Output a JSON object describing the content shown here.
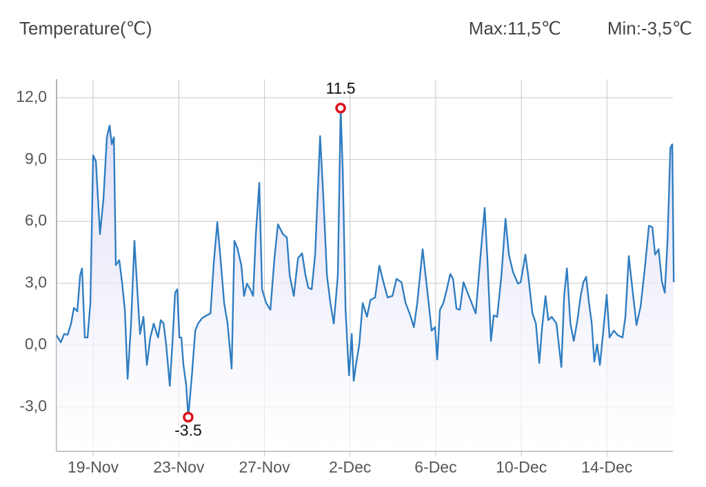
{
  "header": {
    "title": "Temperature(℃)",
    "max": "Max:11,5℃",
    "min": "Min:-3,5℃"
  },
  "chart_data": {
    "type": "line",
    "x": [
      -1.71,
      -1.51,
      -1.35,
      -1.19,
      -1.03,
      -0.9,
      -0.74,
      -0.61,
      -0.52,
      -0.39,
      -0.26,
      -0.13,
      0,
      0.13,
      0.32,
      0.48,
      0.64,
      0.77,
      0.87,
      0.97,
      1.06,
      1.22,
      1.35,
      1.48,
      1.61,
      1.77,
      1.93,
      2.06,
      2.19,
      2.35,
      2.51,
      2.67,
      2.83,
      3.03,
      3.16,
      3.29,
      3.41,
      3.58,
      3.7,
      3.83,
      3.93,
      4.03,
      4.12,
      4.22,
      4.35,
      4.44,
      4.61,
      4.77,
      4.9,
      5.09,
      5.31,
      5.48,
      5.64,
      5.8,
      5.96,
      6.12,
      6.28,
      6.47,
      6.6,
      6.73,
      6.92,
      7.05,
      7.18,
      7.34,
      7.47,
      7.6,
      7.76,
      7.89,
      8.08,
      8.28,
      8.47,
      8.63,
      8.86,
      9.05,
      9.18,
      9.37,
      9.57,
      9.76,
      9.92,
      10.05,
      10.21,
      10.37,
      10.6,
      10.76,
      10.92,
      11.08,
      11.24,
      11.43,
      11.56,
      11.66,
      11.79,
      11.95,
      12.08,
      12.17,
      12.3,
      12.43,
      12.59,
      12.79,
      12.95,
      13.17,
      13.37,
      13.56,
      13.75,
      13.98,
      14.17,
      14.4,
      14.59,
      14.78,
      14.98,
      15.14,
      15.39,
      15.62,
      15.81,
      15.97,
      16.07,
      16.2,
      16.36,
      16.52,
      16.68,
      16.81,
      16.97,
      17.13,
      17.3,
      17.49,
      17.68,
      17.87,
      18.1,
      18.29,
      18.42,
      18.58,
      18.71,
      18.87,
      19.07,
      19.26,
      19.42,
      19.61,
      19.84,
      19.97,
      20.19,
      20.32,
      20.52,
      20.68,
      20.84,
      20.97,
      21.13,
      21.26,
      21.42,
      21.64,
      21.87,
      22.0,
      22.13,
      22.29,
      22.45,
      22.61,
      22.77,
      22.9,
      23.03,
      23.16,
      23.29,
      23.41,
      23.54,
      23.67,
      23.83,
      23.99,
      24.12,
      24.32,
      24.51,
      24.73,
      24.86,
      25.02,
      25.19,
      25.38,
      25.57,
      25.77,
      25.96,
      26.12,
      26.25,
      26.41,
      26.57,
      26.7,
      26.83,
      26.96,
      27.05,
      27.12
    ],
    "series": [
      {
        "color": "#2f7dc0",
        "values": [
          0.47,
          0.13,
          0.54,
          0.5,
          1.04,
          1.81,
          1.64,
          3.38,
          3.72,
          0.37,
          0.37,
          2.04,
          9.21,
          8.91,
          5.39,
          7.06,
          10.08,
          10.65,
          9.74,
          10.08,
          3.88,
          4.12,
          3.05,
          1.71,
          -1.64,
          1.04,
          5.06,
          2.71,
          0.54,
          1.37,
          -0.97,
          0.37,
          1.04,
          0.37,
          1.21,
          1.04,
          0.03,
          -1.98,
          0.03,
          2.54,
          2.71,
          0.37,
          0.37,
          -0.97,
          -1.98,
          -3.5,
          -1.47,
          0.7,
          1.04,
          1.31,
          1.44,
          1.54,
          4.05,
          5.96,
          4.05,
          2.04,
          1.04,
          -1.14,
          5.06,
          4.72,
          3.88,
          2.38,
          2.98,
          2.71,
          2.38,
          5.39,
          7.87,
          2.71,
          2.04,
          1.71,
          4.22,
          5.86,
          5.39,
          5.22,
          3.38,
          2.38,
          4.22,
          4.45,
          3.38,
          2.78,
          2.71,
          4.39,
          10.14,
          7.06,
          3.38,
          2.04,
          1.04,
          3.38,
          11.5,
          8.4,
          1.71,
          -1.47,
          0.54,
          -1.74,
          -0.8,
          0.03,
          2.04,
          1.37,
          2.18,
          2.31,
          3.85,
          3.05,
          2.31,
          2.38,
          3.21,
          3.05,
          2.04,
          1.54,
          0.87,
          2.04,
          4.65,
          2.54,
          0.7,
          0.87,
          -0.7,
          1.71,
          2.04,
          2.71,
          3.45,
          3.21,
          1.77,
          1.71,
          3.05,
          2.54,
          2.04,
          1.54,
          4.39,
          6.66,
          4.05,
          0.2,
          1.44,
          1.37,
          3.38,
          6.13,
          4.39,
          3.55,
          2.98,
          3.05,
          4.39,
          3.38,
          1.54,
          1.04,
          -0.87,
          0.87,
          2.38,
          1.21,
          1.37,
          1.04,
          -1.07,
          2.38,
          3.72,
          1.04,
          0.2,
          1.14,
          2.38,
          3.05,
          3.31,
          2.04,
          1.04,
          -0.8,
          0.03,
          -0.97,
          0.7,
          2.44,
          0.37,
          0.7,
          0.47,
          0.37,
          1.37,
          4.32,
          2.71,
          0.97,
          1.87,
          3.72,
          5.79,
          5.72,
          4.39,
          4.65,
          3.05,
          2.54,
          5.06,
          9.57,
          9.74,
          3.05
        ]
      }
    ],
    "markers": [
      {
        "x": 11.56,
        "y": 11.5,
        "color": "#d9111b"
      },
      {
        "x": 4.44,
        "y": -3.5,
        "color": "#d9111b"
      }
    ],
    "xlim": [
      -1.71,
      27.08
    ],
    "xticks": [
      {
        "value": 0,
        "label": "19-Nov"
      },
      {
        "value": 4,
        "label": "23-Nov"
      },
      {
        "value": 8,
        "label": "27-Nov"
      },
      {
        "value": 12,
        "label": "2-Dec"
      },
      {
        "value": 16,
        "label": "6-Dec"
      },
      {
        "value": 20,
        "label": "10-Dec"
      },
      {
        "value": 24,
        "label": "14-Dec"
      }
    ],
    "ylim": [
      -5.15,
      12.9
    ],
    "yticks": [
      {
        "value": -3,
        "label": "-3,0"
      },
      {
        "value": 0,
        "label": "0,0"
      },
      {
        "value": 3,
        "label": "3,0"
      },
      {
        "value": 6,
        "label": "6,0"
      },
      {
        "value": 9,
        "label": "9,0"
      },
      {
        "value": 12,
        "label": "12,0"
      }
    ],
    "grid": true,
    "fill": true
  }
}
